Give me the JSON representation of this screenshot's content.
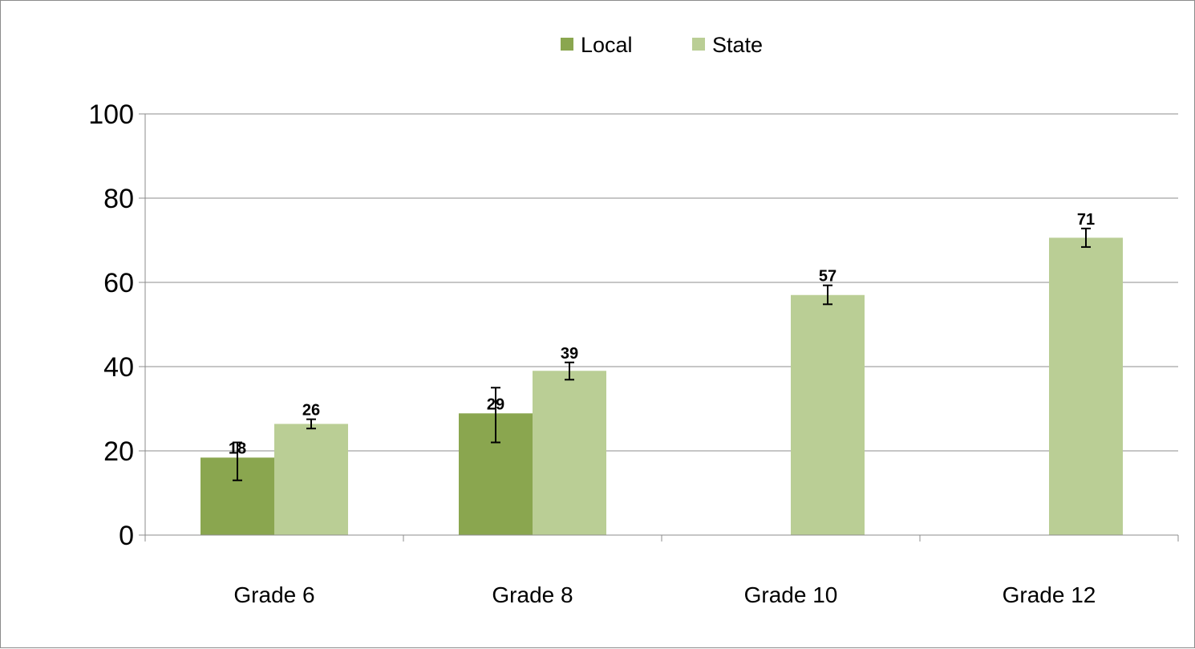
{
  "chart_data": {
    "type": "bar",
    "title": "",
    "xlabel": "",
    "ylabel": "",
    "ylim": [
      0,
      100
    ],
    "yticks": [
      0,
      20,
      40,
      60,
      80,
      100
    ],
    "ytick_labels": [
      "0",
      "20",
      "40",
      "60",
      "80",
      "100"
    ],
    "grid": true,
    "legend_position": "top-center",
    "categories": [
      "Grade 6",
      "Grade 8",
      "Grade 10",
      "Grade 12"
    ],
    "series": [
      {
        "name": "Local",
        "color": "#8aa64f",
        "values": [
          18.4,
          28.9,
          null,
          null
        ],
        "labels": [
          "18",
          "29",
          "",
          ""
        ],
        "error_low": [
          13,
          22,
          null,
          null
        ],
        "error_high": [
          22,
          35,
          null,
          null
        ]
      },
      {
        "name": "State",
        "color": "#bace95",
        "values": [
          26.4,
          39,
          57,
          70.6
        ],
        "labels": [
          "26",
          "39",
          "57",
          "71"
        ],
        "error_low": [
          25.3,
          36.9,
          54.8,
          68.4
        ],
        "error_high": [
          27.5,
          41,
          59.3,
          72.8
        ]
      }
    ]
  }
}
